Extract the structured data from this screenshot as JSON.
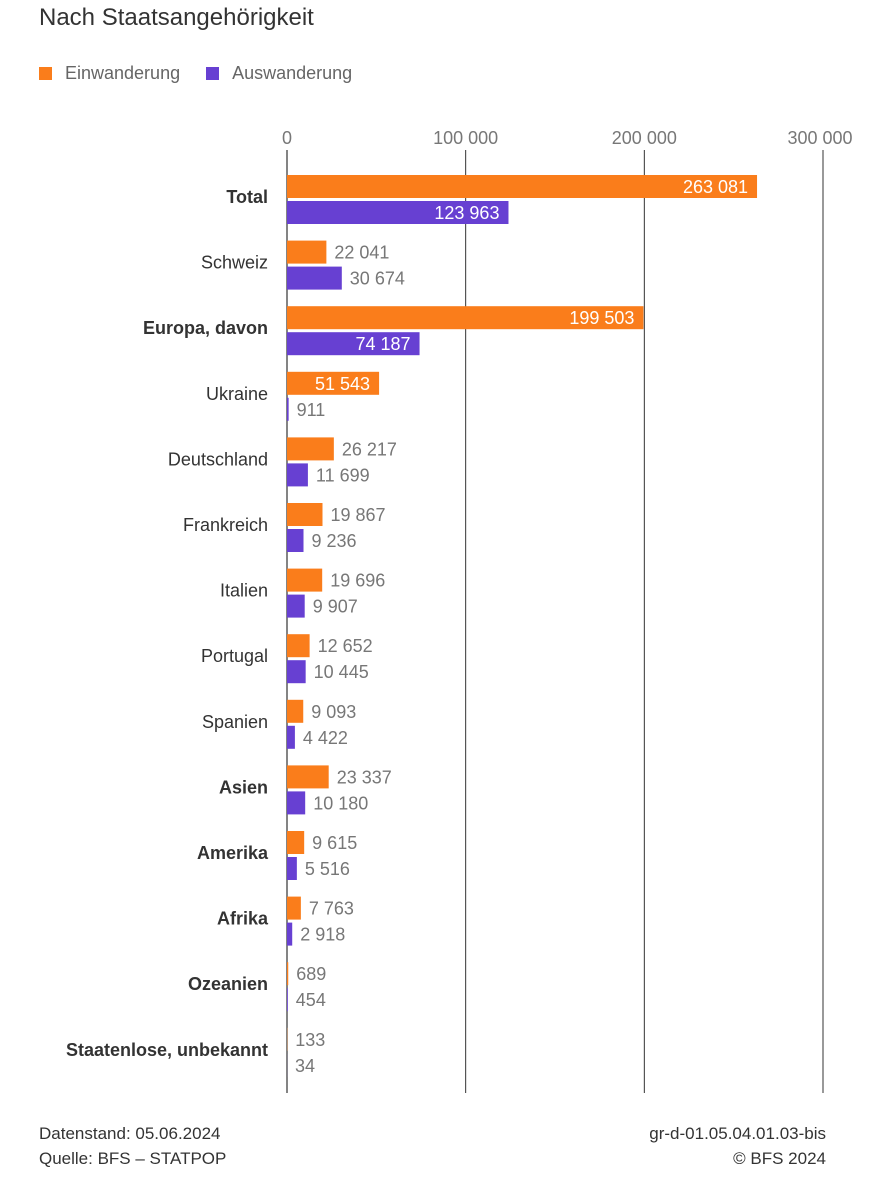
{
  "colors": {
    "immigration": "#fa7d1b",
    "emigration": "#6740d2",
    "grid": "#333333",
    "label_outside": "#777777",
    "label_inside": "#ffffff"
  },
  "chart_data": {
    "type": "bar",
    "orientation": "horizontal",
    "title": "Nach Staatsangehörigkeit",
    "xlim": [
      0,
      300000
    ],
    "xticks": [
      0,
      100000,
      200000,
      300000
    ],
    "xtick_labels": [
      "0",
      "100 000",
      "200 000",
      "300 000"
    ],
    "legend_position": "top-left",
    "series": [
      {
        "name": "Einwanderung",
        "color_key": "immigration",
        "values": [
          263081,
          22041,
          199503,
          51543,
          26217,
          19867,
          19696,
          12652,
          9093,
          23337,
          9615,
          7763,
          689,
          133
        ],
        "labels": [
          "263 081",
          "22 041",
          "199 503",
          "51 543",
          "26 217",
          "19 867",
          "19 696",
          "12 652",
          "9 093",
          "23 337",
          "9 615",
          "7 763",
          "689",
          "133"
        ],
        "label_inside": [
          true,
          false,
          true,
          true,
          false,
          false,
          false,
          false,
          false,
          false,
          false,
          false,
          false,
          false
        ]
      },
      {
        "name": "Auswanderung",
        "color_key": "emigration",
        "values": [
          123963,
          30674,
          74187,
          911,
          11699,
          9236,
          9907,
          10445,
          4422,
          10180,
          5516,
          2918,
          454,
          34
        ],
        "labels": [
          "123 963",
          "30 674",
          "74 187",
          "911",
          "11 699",
          "9 236",
          "9 907",
          "10 445",
          "4 422",
          "10 180",
          "5 516",
          "2 918",
          "454",
          "34"
        ],
        "label_inside": [
          true,
          false,
          true,
          false,
          false,
          false,
          false,
          false,
          false,
          false,
          false,
          false,
          false,
          false
        ]
      }
    ],
    "categories": [
      "Total",
      "Schweiz",
      "Europa, davon",
      "Ukraine",
      "Deutschland",
      "Frankreich",
      "Italien",
      "Portugal",
      "Spanien",
      "Asien",
      "Amerika",
      "Afrika",
      "Ozeanien",
      "Staatenlose, unbekannt"
    ],
    "category_bold": [
      true,
      false,
      true,
      false,
      false,
      false,
      false,
      false,
      false,
      true,
      true,
      true,
      true,
      true
    ]
  },
  "footer": {
    "datenstand": "Datenstand: 05.06.2024",
    "quelle": "Quelle: BFS – STATPOP",
    "id": "gr-d-01.05.04.01.03-bis",
    "copyright": "© BFS 2024"
  }
}
